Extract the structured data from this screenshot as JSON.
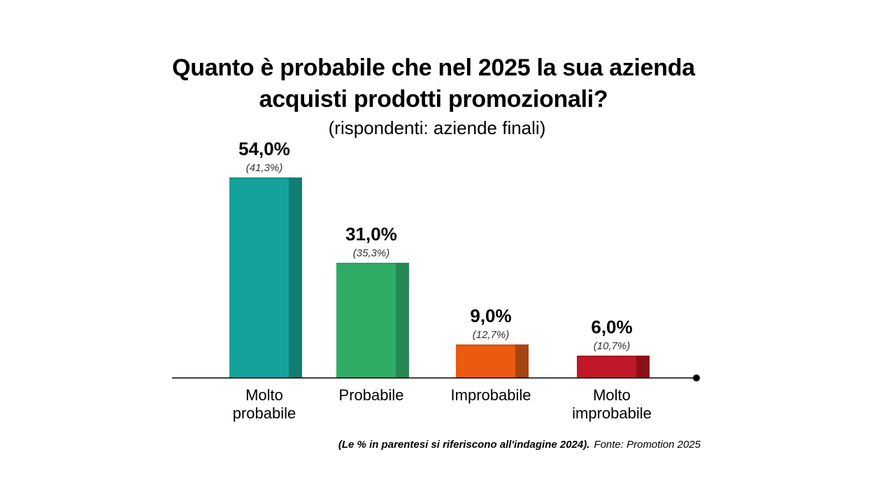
{
  "title_line1": "Quanto è probabile che nel 2025 la sua azienda",
  "title_line2": "acquisti prodotti promozionali?",
  "subtitle": "(rispondenti: aziende finali)",
  "footnote": "(Le % in parentesi si riferiscono all'indagine 2024).",
  "source": "Fonte: Promotion 2025",
  "chart_data": {
    "type": "bar",
    "categories": [
      [
        "Molto",
        "probabile"
      ],
      [
        "Probabile"
      ],
      [
        "Improbabile"
      ],
      [
        "Molto",
        "improbabile"
      ]
    ],
    "values": [
      54.0,
      31.0,
      9.0,
      6.0
    ],
    "value_labels": [
      "54,0%",
      "31,0%",
      "9,0%",
      "6,0%"
    ],
    "previous_values": [
      41.3,
      35.3,
      12.7,
      10.7
    ],
    "previous_labels": [
      "(41,3%)",
      "(35,3%)",
      "(12,7%)",
      "(10,7%)"
    ],
    "colors": [
      "#14a39c",
      "#2fad66",
      "#ea5b11",
      "#c01828"
    ],
    "shade_colors": [
      "#137d74",
      "#268752",
      "#a54511",
      "#8a1118"
    ],
    "ylim": [
      0,
      60
    ],
    "grid": false
  }
}
